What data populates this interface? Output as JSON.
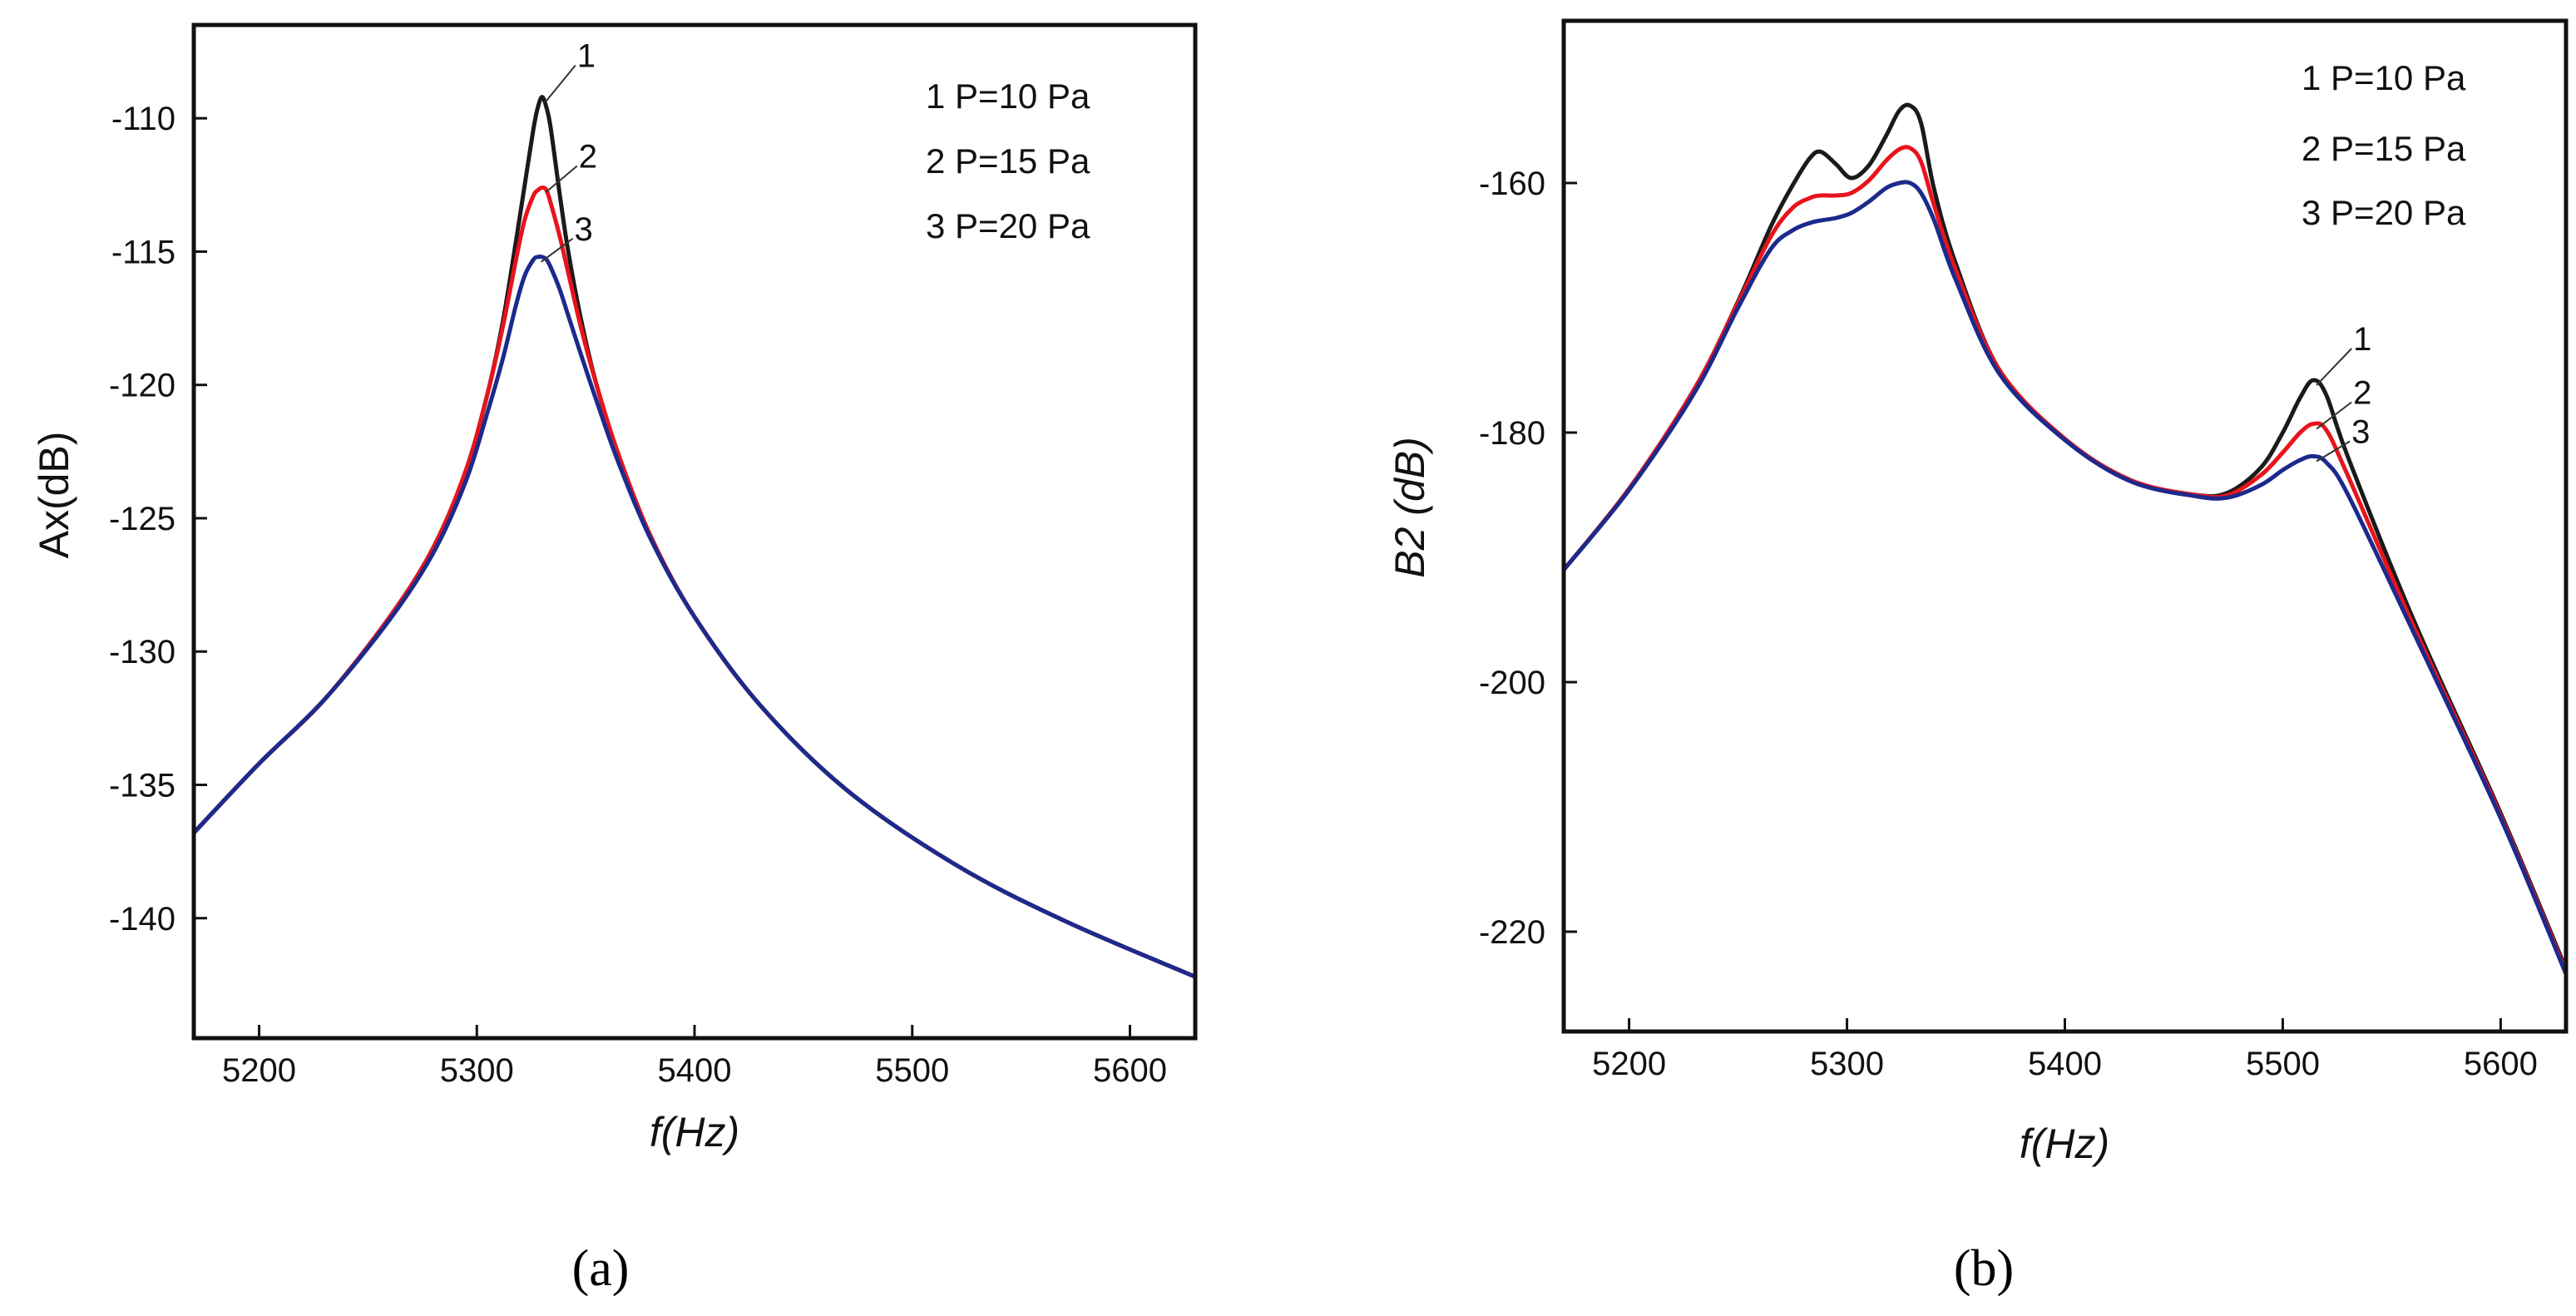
{
  "chart_data": [
    {
      "type": "line",
      "panel_label": "(a)",
      "xlabel": "f(Hz)",
      "ylabel": "Ax(dB)",
      "xlim": [
        5170,
        5630
      ],
      "ylim": [
        -144.5,
        -106.5
      ],
      "xticks": [
        5200,
        5300,
        5400,
        5500,
        5600
      ],
      "yticks": [
        -110,
        -115,
        -120,
        -125,
        -130,
        -135,
        -140
      ],
      "legend_position": "top-right",
      "legend": [
        "1  P=10 Pa",
        "2  P=15 Pa",
        "3  P=20 Pa"
      ],
      "series": [
        {
          "name": "1",
          "label": "P=10 Pa",
          "color": "#1a1a1a",
          "x": [
            5170,
            5200,
            5230,
            5260,
            5280,
            5295,
            5305,
            5312,
            5318,
            5322,
            5326,
            5328,
            5330,
            5332,
            5334,
            5338,
            5342,
            5348,
            5355,
            5365,
            5380,
            5400,
            5430,
            5470,
            5520,
            5570,
            5630
          ],
          "y": [
            -136.8,
            -134.2,
            -131.8,
            -128.7,
            -126.1,
            -123.2,
            -120.3,
            -117.6,
            -114.6,
            -112.5,
            -110.4,
            -109.6,
            -109.2,
            -109.6,
            -110.4,
            -112.8,
            -115.0,
            -117.6,
            -120.0,
            -122.6,
            -125.7,
            -128.7,
            -132.0,
            -135.2,
            -138.0,
            -140.1,
            -142.2
          ]
        },
        {
          "name": "2",
          "label": "P=15 Pa",
          "color": "#e8141c",
          "x": [
            5170,
            5200,
            5230,
            5260,
            5280,
            5295,
            5305,
            5312,
            5318,
            5322,
            5326,
            5328,
            5330,
            5332,
            5334,
            5338,
            5342,
            5348,
            5355,
            5365,
            5380,
            5400,
            5430,
            5470,
            5520,
            5570,
            5630
          ],
          "y": [
            -136.8,
            -134.2,
            -131.8,
            -128.7,
            -126.1,
            -123.2,
            -120.3,
            -117.8,
            -115.3,
            -113.8,
            -112.9,
            -112.7,
            -112.6,
            -112.7,
            -113.2,
            -114.4,
            -115.8,
            -117.9,
            -120.0,
            -122.6,
            -125.7,
            -128.7,
            -132.0,
            -135.2,
            -138.0,
            -140.1,
            -142.2
          ]
        },
        {
          "name": "3",
          "label": "P=20 Pa",
          "color": "#1c2a8c",
          "x": [
            5170,
            5200,
            5230,
            5260,
            5280,
            5295,
            5305,
            5312,
            5318,
            5322,
            5326,
            5328,
            5330,
            5332,
            5334,
            5338,
            5342,
            5348,
            5355,
            5365,
            5380,
            5400,
            5430,
            5470,
            5520,
            5570,
            5630
          ],
          "y": [
            -136.8,
            -134.2,
            -131.8,
            -128.8,
            -126.3,
            -123.6,
            -121.0,
            -119.0,
            -117.0,
            -115.9,
            -115.3,
            -115.2,
            -115.2,
            -115.3,
            -115.6,
            -116.4,
            -117.4,
            -118.9,
            -120.6,
            -122.9,
            -125.8,
            -128.7,
            -132.0,
            -135.2,
            -138.0,
            -140.1,
            -142.2
          ]
        }
      ],
      "curve_labels": [
        "1",
        "2",
        "3"
      ]
    },
    {
      "type": "line",
      "panel_label": "(b)",
      "xlabel": "f(Hz)",
      "ylabel": "B2 (dB)",
      "xlim": [
        5170,
        5630
      ],
      "ylim": [
        -228,
        -147
      ],
      "xticks": [
        5200,
        5300,
        5400,
        5500,
        5600
      ],
      "yticks": [
        -160,
        -180,
        -200,
        -220
      ],
      "legend_position": "top-right",
      "legend": [
        "1  P=10 Pa",
        "2  P=15 Pa",
        "3  P=20 Pa"
      ],
      "series": [
        {
          "name": "1",
          "label": "P=10 Pa",
          "color": "#1a1a1a",
          "x": [
            5170,
            5200,
            5230,
            5250,
            5265,
            5275,
            5283,
            5288,
            5295,
            5302,
            5310,
            5318,
            5324,
            5329,
            5334,
            5340,
            5350,
            5370,
            5400,
            5430,
            5460,
            5475,
            5490,
            5500,
            5508,
            5514,
            5520,
            5530,
            5560,
            5600,
            5630
          ],
          "y": [
            -191,
            -184.5,
            -176.5,
            -169.5,
            -163.5,
            -160.2,
            -158.0,
            -157.5,
            -158.5,
            -159.6,
            -158.6,
            -156.2,
            -154.2,
            -153.8,
            -155.2,
            -160.5,
            -166.5,
            -175.0,
            -180.5,
            -183.8,
            -185.0,
            -184.8,
            -182.8,
            -180.0,
            -177.2,
            -175.8,
            -177.0,
            -182.0,
            -195.0,
            -210.5,
            -223.0
          ]
        },
        {
          "name": "2",
          "label": "P=15 Pa",
          "color": "#e8141c",
          "x": [
            5170,
            5200,
            5230,
            5250,
            5265,
            5275,
            5283,
            5288,
            5295,
            5302,
            5310,
            5318,
            5324,
            5329,
            5334,
            5340,
            5350,
            5370,
            5400,
            5430,
            5460,
            5475,
            5490,
            5500,
            5508,
            5514,
            5520,
            5530,
            5560,
            5600,
            5630
          ],
          "y": [
            -191,
            -184.5,
            -176.5,
            -169.6,
            -164.3,
            -162.0,
            -161.2,
            -161.0,
            -161.0,
            -160.8,
            -159.8,
            -158.2,
            -157.3,
            -157.2,
            -158.3,
            -161.8,
            -167.0,
            -175.0,
            -180.5,
            -183.8,
            -185.0,
            -185.0,
            -183.4,
            -181.6,
            -180.0,
            -179.3,
            -179.8,
            -183.5,
            -195.5,
            -210.7,
            -223.2
          ]
        },
        {
          "name": "3",
          "label": "P=20 Pa",
          "color": "#1c2a8c",
          "x": [
            5170,
            5200,
            5230,
            5250,
            5265,
            5275,
            5283,
            5288,
            5295,
            5302,
            5310,
            5318,
            5324,
            5329,
            5334,
            5340,
            5350,
            5370,
            5400,
            5430,
            5460,
            5475,
            5490,
            5500,
            5508,
            5514,
            5520,
            5530,
            5560,
            5600,
            5630
          ],
          "y": [
            -191,
            -184.6,
            -176.8,
            -170.0,
            -165.3,
            -163.8,
            -163.2,
            -163.0,
            -162.8,
            -162.4,
            -161.5,
            -160.4,
            -160.0,
            -160.0,
            -160.8,
            -163.0,
            -167.8,
            -175.3,
            -180.6,
            -183.9,
            -185.1,
            -185.2,
            -184.2,
            -183.0,
            -182.2,
            -181.9,
            -182.4,
            -185.0,
            -196.0,
            -210.9,
            -223.4
          ]
        }
      ],
      "curve_labels": [
        "1",
        "2",
        "3"
      ]
    }
  ]
}
